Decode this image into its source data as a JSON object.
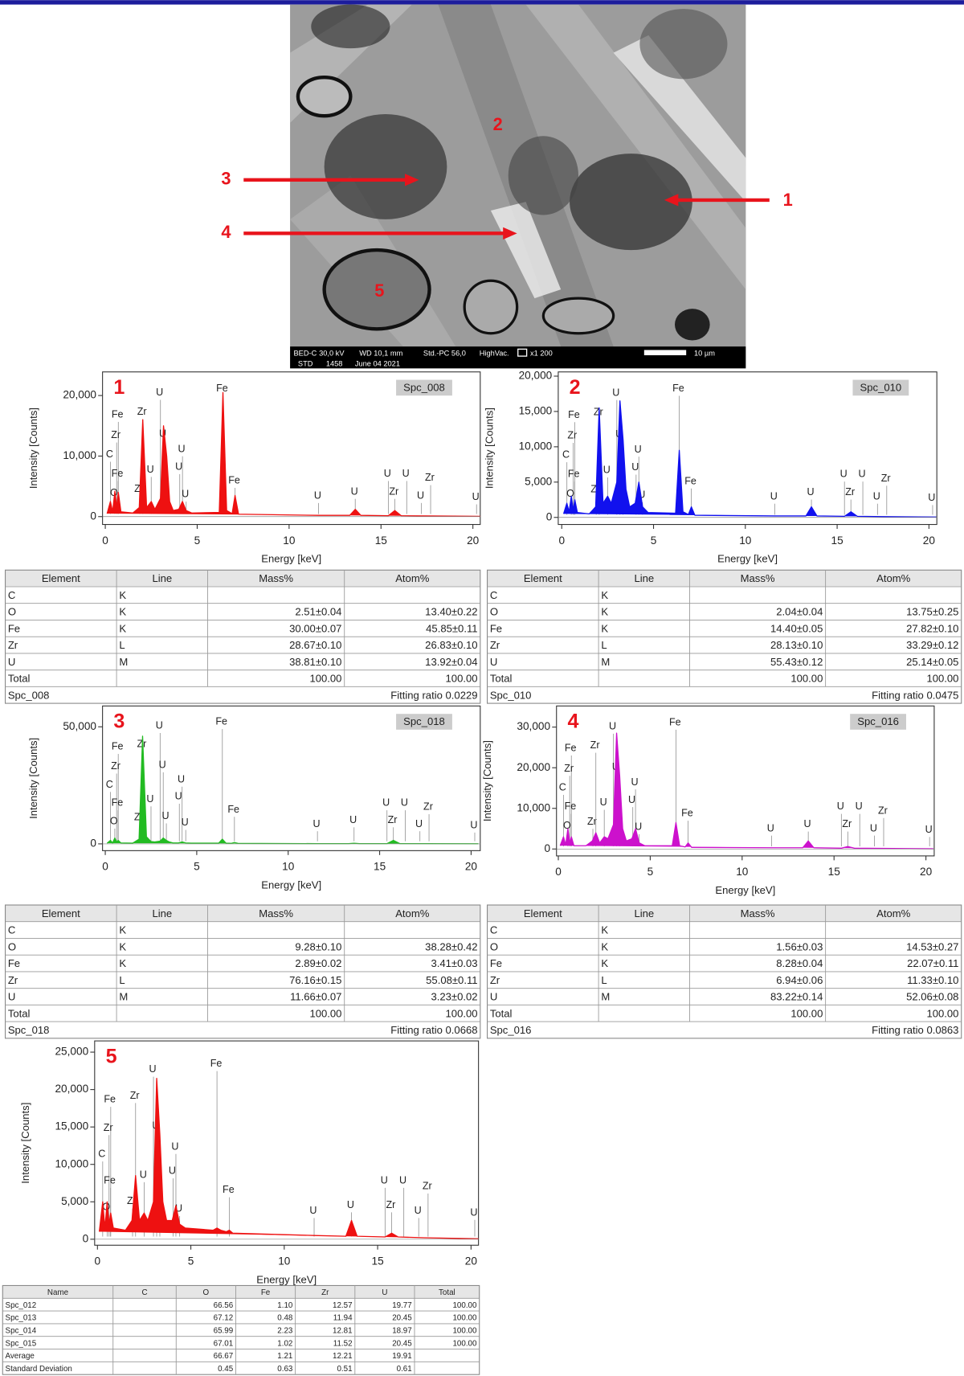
{
  "image": {
    "labels": [
      "1",
      "2",
      "3",
      "4",
      "5"
    ],
    "info": [
      "BED-C",
      "30,0 kV",
      "WD 10,1 mm",
      "Std.-PC 56,0",
      "HighVac.",
      "x1 200",
      "STD",
      "1458",
      "June 04 2021",
      "10 µm"
    ]
  },
  "peak_labels": [
    {
      "text": "Fe",
      "energy": 0.71
    },
    {
      "text": "Zr",
      "energy": 0.62
    },
    {
      "text": "C",
      "energy": 0.28
    },
    {
      "text": "Fe",
      "energy": 0.7
    },
    {
      "text": "O",
      "energy": 0.52
    },
    {
      "text": "Zr",
      "energy": 1.88
    },
    {
      "text": "Zr",
      "energy": 2.04
    },
    {
      "text": "U",
      "energy": 2.5
    },
    {
      "text": "U",
      "energy": 3.0
    },
    {
      "text": "U",
      "energy": 3.17
    },
    {
      "text": "U",
      "energy": 3.34
    },
    {
      "text": "U",
      "energy": 4.2
    },
    {
      "text": "U",
      "energy": 4.4
    },
    {
      "text": "U",
      "energy": 4.05
    },
    {
      "text": "Fe",
      "energy": 6.4
    },
    {
      "text": "Fe",
      "energy": 7.06
    },
    {
      "text": "U",
      "energy": 11.6
    },
    {
      "text": "U",
      "energy": 13.6
    },
    {
      "text": "U",
      "energy": 15.4
    },
    {
      "text": "Zr",
      "energy": 15.75
    },
    {
      "text": "U",
      "energy": 16.4
    },
    {
      "text": "U",
      "energy": 17.2
    },
    {
      "text": "Zr",
      "energy": 17.7
    },
    {
      "text": "U",
      "energy": 20.2
    }
  ],
  "chart_data": [
    {
      "type": "area",
      "label": "1",
      "spectrum": "Spc_008",
      "color": "#ee1111",
      "x_label": "Energy [keV]",
      "y_label": "Intensity [Counts]",
      "x": [
        0.1,
        0.28,
        0.4,
        0.52,
        0.62,
        0.71,
        0.85,
        1.5,
        1.85,
        2.04,
        2.25,
        2.5,
        2.7,
        3.0,
        3.17,
        3.34,
        3.5,
        3.7,
        4.0,
        4.2,
        4.4,
        4.7,
        6.2,
        6.4,
        6.6,
        6.9,
        7.06,
        7.25,
        11.6,
        13.3,
        13.6,
        13.9,
        15.4,
        15.75,
        16.1,
        17.5,
        20.4
      ],
      "values": [
        500,
        2500,
        800,
        4200,
        1500,
        4000,
        800,
        600,
        1500,
        16000,
        1500,
        2500,
        1200,
        3000,
        15000,
        10000,
        2500,
        1000,
        1200,
        2500,
        1000,
        600,
        700,
        20500,
        1000,
        500,
        3500,
        400,
        200,
        200,
        1200,
        200,
        150,
        1000,
        150,
        100,
        50
      ],
      "xlim": [
        -0.15,
        20.4
      ],
      "xticks": [
        0,
        5,
        10,
        15,
        20
      ],
      "ylim": [
        -1300,
        23900
      ],
      "yticks": [
        0,
        {
          "value": 10000,
          "label": "10,000"
        },
        {
          "value": 20000,
          "label": "20,000"
        }
      ]
    },
    {
      "type": "area",
      "label": "2",
      "spectrum": "Spc_010",
      "color": "#1111ee",
      "x_label": "Energy [keV]",
      "y_label": "Intensity [Counts]",
      "x": [
        0.1,
        0.28,
        0.4,
        0.52,
        0.62,
        0.71,
        0.85,
        1.5,
        1.85,
        2.04,
        2.25,
        2.5,
        2.7,
        3.0,
        3.17,
        3.34,
        3.5,
        3.7,
        4.0,
        4.2,
        4.4,
        4.7,
        6.2,
        6.4,
        6.6,
        6.9,
        7.06,
        7.25,
        11.6,
        13.3,
        13.6,
        13.9,
        15.4,
        15.75,
        16.1,
        17.5,
        20.4
      ],
      "values": [
        500,
        2000,
        800,
        3000,
        1000,
        2500,
        700,
        500,
        1500,
        15500,
        2000,
        3000,
        2000,
        5000,
        16500,
        11000,
        4000,
        1500,
        2000,
        5000,
        1500,
        700,
        600,
        9500,
        800,
        400,
        1500,
        300,
        200,
        200,
        1500,
        200,
        150,
        800,
        150,
        100,
        50
      ],
      "xlim": [
        -0.19,
        20.43
      ],
      "xticks": [
        0,
        5,
        10,
        15,
        20
      ],
      "ylim": [
        -1000,
        20600
      ],
      "yticks": [
        0,
        {
          "value": 5000,
          "label": "5,000"
        },
        {
          "value": 10000,
          "label": "10,000"
        },
        {
          "value": 15000,
          "label": "15,000"
        },
        {
          "value": 20000,
          "label": "20,000"
        }
      ]
    },
    {
      "type": "area",
      "label": "3",
      "spectrum": "Spc_018",
      "color": "#22bb22",
      "x_label": "Energy [keV]",
      "y_label": "Intensity [Counts]",
      "x": [
        0.1,
        0.28,
        0.4,
        0.52,
        0.62,
        0.71,
        0.85,
        1.5,
        1.85,
        2.04,
        2.25,
        2.5,
        2.7,
        3.0,
        3.17,
        3.34,
        3.5,
        3.7,
        4.0,
        4.2,
        4.4,
        4.7,
        6.2,
        6.4,
        6.6,
        6.9,
        7.06,
        7.25,
        11.6,
        13.3,
        13.6,
        13.9,
        15.4,
        15.75,
        16.1,
        17.5,
        20.4
      ],
      "values": [
        300,
        1500,
        400,
        2500,
        800,
        1500,
        400,
        300,
        2000,
        46000,
        3000,
        1000,
        800,
        1200,
        2500,
        1500,
        800,
        400,
        400,
        800,
        400,
        300,
        300,
        2000,
        300,
        200,
        600,
        200,
        100,
        100,
        300,
        100,
        100,
        1500,
        100,
        100,
        50
      ],
      "xlim": [
        -0.15,
        20.5
      ],
      "xticks": [
        0,
        5,
        10,
        15,
        20
      ],
      "ylim": [
        -2900,
        58900
      ],
      "yticks": [
        0,
        {
          "value": 50000,
          "label": "50,000"
        }
      ]
    },
    {
      "type": "area",
      "label": "4",
      "spectrum": "Spc_016",
      "color": "#cc11cc",
      "x_label": "Energy [keV]",
      "y_label": "Intensity [Counts]",
      "x": [
        0.1,
        0.28,
        0.4,
        0.52,
        0.62,
        0.71,
        0.85,
        1.5,
        1.85,
        2.04,
        2.25,
        2.5,
        2.7,
        3.0,
        3.17,
        3.34,
        3.5,
        3.7,
        4.0,
        4.2,
        4.4,
        4.7,
        6.2,
        6.4,
        6.6,
        6.9,
        7.06,
        7.25,
        11.6,
        13.3,
        13.6,
        13.9,
        15.4,
        15.75,
        16.1,
        17.5,
        20.4
      ],
      "values": [
        800,
        3000,
        1000,
        5000,
        1500,
        3000,
        800,
        800,
        2000,
        4000,
        1500,
        3000,
        2500,
        6000,
        28500,
        18000,
        5000,
        2000,
        2500,
        5000,
        1500,
        800,
        800,
        6500,
        800,
        500,
        1500,
        400,
        300,
        300,
        2000,
        300,
        200,
        600,
        200,
        150,
        50
      ],
      "xlim": [
        -0.1,
        20.45
      ],
      "xticks": [
        0,
        5,
        10,
        15,
        20
      ],
      "ylim": [
        -1700,
        35200
      ],
      "yticks": [
        0,
        {
          "value": 10000,
          "label": "10,000"
        },
        {
          "value": 20000,
          "label": "20,000"
        },
        {
          "value": 30000,
          "label": "30,000"
        }
      ]
    },
    {
      "type": "area",
      "label": "5",
      "color": "#ee1111",
      "x_label": "Energy [keV]",
      "y_label": "Intensity [Counts]",
      "x": [
        0.1,
        0.28,
        0.4,
        0.52,
        0.62,
        0.71,
        0.85,
        1.5,
        1.85,
        2.04,
        2.25,
        2.5,
        2.7,
        3.0,
        3.17,
        3.34,
        3.5,
        3.7,
        4.0,
        4.2,
        4.4,
        4.7,
        6.2,
        6.4,
        6.6,
        6.9,
        7.06,
        7.25,
        11.6,
        13.3,
        13.6,
        13.9,
        15.4,
        15.75,
        16.1,
        17.5,
        20.4
      ],
      "values": [
        1000,
        5000,
        1500,
        5000,
        2000,
        3500,
        1500,
        1200,
        2500,
        8500,
        2500,
        3500,
        2500,
        5000,
        21500,
        14000,
        5000,
        2500,
        2500,
        4500,
        2000,
        1500,
        1200,
        1500,
        1200,
        1000,
        1200,
        800,
        500,
        400,
        2500,
        400,
        300,
        800,
        300,
        200,
        50
      ],
      "xlim": [
        -0.15,
        20.4
      ],
      "xticks": [
        0,
        5,
        10,
        15,
        20
      ],
      "ylim": [
        -800,
        26500
      ],
      "yticks": [
        0,
        {
          "value": 5000,
          "label": "5,000"
        },
        {
          "value": 10000,
          "label": "10,000"
        },
        {
          "value": 15000,
          "label": "15,000"
        },
        {
          "value": 20000,
          "label": "20,000"
        },
        {
          "value": 25000,
          "label": "25,000"
        }
      ]
    }
  ],
  "tables": [
    {
      "header": [
        "Element",
        "Line",
        "Mass%",
        "Atom%"
      ],
      "rows": [
        [
          "C",
          "K",
          null,
          null
        ],
        [
          "O",
          "K",
          "2.51±0.04",
          "13.40±0.22"
        ],
        [
          "Fe",
          "K",
          "30.00±0.07",
          "45.85±0.11"
        ],
        [
          "Zr",
          "L",
          "28.67±0.10",
          "26.83±0.10"
        ],
        [
          "U",
          "M",
          "38.81±0.10",
          "13.92±0.04"
        ],
        [
          "Total",
          null,
          "100.00",
          "100.00"
        ]
      ],
      "footer": [
        "Spc_008",
        "Fitting ratio 0.0229"
      ]
    },
    {
      "header": [
        "Element",
        "Line",
        "Mass%",
        "Atom%"
      ],
      "rows": [
        [
          "C",
          "K",
          null,
          null
        ],
        [
          "O",
          "K",
          "2.04±0.04",
          "13.75±0.25"
        ],
        [
          "Fe",
          "K",
          "14.40±0.05",
          "27.82±0.10"
        ],
        [
          "Zr",
          "L",
          "28.13±0.10",
          "33.29±0.12"
        ],
        [
          "U",
          "M",
          "55.43±0.12",
          "25.14±0.05"
        ],
        [
          "Total",
          null,
          "100.00",
          "100.00"
        ]
      ],
      "footer": [
        "Spc_010",
        "Fitting ratio 0.0475"
      ]
    },
    {
      "header": [
        "Element",
        "Line",
        "Mass%",
        "Atom%"
      ],
      "rows": [
        [
          "C",
          "K",
          null,
          null
        ],
        [
          "O",
          "K",
          "9.28±0.10",
          "38.28±0.42"
        ],
        [
          "Fe",
          "K",
          "2.89±0.02",
          "3.41±0.03"
        ],
        [
          "Zr",
          "L",
          "76.16±0.15",
          "55.08±0.11"
        ],
        [
          "U",
          "M",
          "11.66±0.07",
          "3.23±0.02"
        ],
        [
          "Total",
          null,
          "100.00",
          "100.00"
        ]
      ],
      "footer": [
        "Spc_018",
        "Fitting ratio 0.0668"
      ]
    },
    {
      "header": [
        "Element",
        "Line",
        "Mass%",
        "Atom%"
      ],
      "rows": [
        [
          "C",
          "K",
          null,
          null
        ],
        [
          "O",
          "K",
          "1.56±0.03",
          "14.53±0.27"
        ],
        [
          "Fe",
          "K",
          "8.28±0.04",
          "22.07±0.11"
        ],
        [
          "Zr",
          "L",
          "6.94±0.06",
          "11.33±0.10"
        ],
        [
          "U",
          "M",
          "83.22±0.14",
          "52.06±0.08"
        ],
        [
          "Total",
          null,
          "100.00",
          "100.00"
        ]
      ],
      "footer": [
        "Spc_016",
        "Fitting ratio 0.0863"
      ]
    },
    {
      "header": [
        "Name",
        "C",
        "O",
        "Fe",
        "Zr",
        "U",
        "Total"
      ],
      "rows": [
        [
          "Spc_012",
          null,
          "66.56",
          "1.10",
          "12.57",
          "19.77",
          "100.00"
        ],
        [
          "Spc_013",
          null,
          "67.12",
          "0.48",
          "11.94",
          "20.45",
          "100.00"
        ],
        [
          "Spc_014",
          null,
          "65.99",
          "2.23",
          "12.81",
          "18.97",
          "100.00"
        ],
        [
          "Spc_015",
          null,
          "67.01",
          "1.02",
          "11.52",
          "20.45",
          "100.00"
        ],
        [
          "Average",
          null,
          "66.67",
          "1.21",
          "12.21",
          "19.91",
          null
        ],
        [
          "Standard Deviation",
          null,
          "0.45",
          "0.63",
          "0.51",
          "0.61",
          null
        ]
      ]
    }
  ]
}
